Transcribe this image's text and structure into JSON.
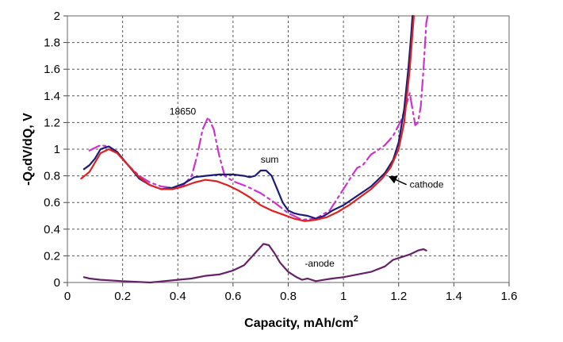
{
  "chart_data": {
    "type": "line",
    "title": "",
    "xlabel": "Capacity, mAh/cm",
    "xlabel_superscript": "2",
    "ylabel": "-Q₀dV/dQ, V",
    "xlim": [
      0,
      1.6
    ],
    "ylim": [
      0,
      2
    ],
    "x_ticks": [
      "0",
      "0.2",
      "0.4",
      "0.6",
      "0.8",
      "1",
      "1.2",
      "1.4",
      "1.6"
    ],
    "y_ticks": [
      "0",
      "0.2",
      "0.4",
      "0.6",
      "0.8",
      "1",
      "1.2",
      "1.4",
      "1.6",
      "1.8",
      "2"
    ],
    "grid": true,
    "series": [
      {
        "name": "18650",
        "color": "#cc33cc",
        "style": "dashdot",
        "points": [
          [
            0.08,
            0.99
          ],
          [
            0.1,
            1.01
          ],
          [
            0.12,
            1.03
          ],
          [
            0.15,
            1.02
          ],
          [
            0.18,
            0.98
          ],
          [
            0.22,
            0.88
          ],
          [
            0.26,
            0.8
          ],
          [
            0.3,
            0.75
          ],
          [
            0.34,
            0.72
          ],
          [
            0.38,
            0.71
          ],
          [
            0.42,
            0.73
          ],
          [
            0.45,
            0.8
          ],
          [
            0.47,
            0.95
          ],
          [
            0.49,
            1.15
          ],
          [
            0.51,
            1.24
          ],
          [
            0.53,
            1.15
          ],
          [
            0.55,
            0.95
          ],
          [
            0.57,
            0.8
          ],
          [
            0.6,
            0.76
          ],
          [
            0.65,
            0.72
          ],
          [
            0.7,
            0.67
          ],
          [
            0.75,
            0.6
          ],
          [
            0.8,
            0.52
          ],
          [
            0.85,
            0.47
          ],
          [
            0.9,
            0.48
          ],
          [
            0.95,
            0.54
          ],
          [
            1.0,
            0.7
          ],
          [
            1.03,
            0.8
          ],
          [
            1.05,
            0.86
          ],
          [
            1.07,
            0.88
          ],
          [
            1.1,
            0.96
          ],
          [
            1.13,
            1.0
          ],
          [
            1.15,
            1.03
          ],
          [
            1.18,
            1.1
          ],
          [
            1.21,
            1.22
          ],
          [
            1.23,
            1.35
          ],
          [
            1.24,
            1.42
          ],
          [
            1.25,
            1.3
          ],
          [
            1.26,
            1.18
          ],
          [
            1.27,
            1.2
          ],
          [
            1.28,
            1.32
          ],
          [
            1.29,
            1.6
          ],
          [
            1.3,
            1.95
          ],
          [
            1.305,
            2.0
          ]
        ]
      },
      {
        "name": "sum",
        "color": "#1c1c78",
        "style": "solid",
        "points": [
          [
            0.06,
            0.85
          ],
          [
            0.08,
            0.88
          ],
          [
            0.1,
            0.93
          ],
          [
            0.12,
            1.0
          ],
          [
            0.15,
            1.02
          ],
          [
            0.18,
            0.98
          ],
          [
            0.22,
            0.88
          ],
          [
            0.26,
            0.78
          ],
          [
            0.3,
            0.73
          ],
          [
            0.34,
            0.7
          ],
          [
            0.38,
            0.71
          ],
          [
            0.42,
            0.74
          ],
          [
            0.46,
            0.79
          ],
          [
            0.5,
            0.8
          ],
          [
            0.55,
            0.81
          ],
          [
            0.6,
            0.81
          ],
          [
            0.64,
            0.8
          ],
          [
            0.66,
            0.79
          ],
          [
            0.68,
            0.8
          ],
          [
            0.7,
            0.84
          ],
          [
            0.72,
            0.84
          ],
          [
            0.74,
            0.8
          ],
          [
            0.76,
            0.7
          ],
          [
            0.78,
            0.6
          ],
          [
            0.8,
            0.54
          ],
          [
            0.82,
            0.52
          ],
          [
            0.84,
            0.51
          ],
          [
            0.87,
            0.5
          ],
          [
            0.9,
            0.48
          ],
          [
            0.93,
            0.5
          ],
          [
            0.96,
            0.54
          ],
          [
            1.0,
            0.58
          ],
          [
            1.05,
            0.65
          ],
          [
            1.1,
            0.72
          ],
          [
            1.15,
            0.82
          ],
          [
            1.18,
            0.92
          ],
          [
            1.2,
            1.05
          ],
          [
            1.22,
            1.3
          ],
          [
            1.235,
            1.6
          ],
          [
            1.245,
            1.85
          ],
          [
            1.25,
            2.0
          ]
        ]
      },
      {
        "name": "cathode",
        "color": "#dd2222",
        "style": "solid",
        "points": [
          [
            0.05,
            0.78
          ],
          [
            0.08,
            0.83
          ],
          [
            0.1,
            0.9
          ],
          [
            0.12,
            0.97
          ],
          [
            0.15,
            1.0
          ],
          [
            0.18,
            0.97
          ],
          [
            0.22,
            0.88
          ],
          [
            0.26,
            0.79
          ],
          [
            0.3,
            0.73
          ],
          [
            0.34,
            0.7
          ],
          [
            0.38,
            0.7
          ],
          [
            0.42,
            0.72
          ],
          [
            0.46,
            0.75
          ],
          [
            0.5,
            0.77
          ],
          [
            0.54,
            0.76
          ],
          [
            0.58,
            0.73
          ],
          [
            0.62,
            0.69
          ],
          [
            0.66,
            0.64
          ],
          [
            0.7,
            0.58
          ],
          [
            0.74,
            0.54
          ],
          [
            0.78,
            0.51
          ],
          [
            0.82,
            0.48
          ],
          [
            0.86,
            0.46
          ],
          [
            0.9,
            0.47
          ],
          [
            0.94,
            0.49
          ],
          [
            0.98,
            0.53
          ],
          [
            1.02,
            0.58
          ],
          [
            1.06,
            0.64
          ],
          [
            1.1,
            0.7
          ],
          [
            1.14,
            0.78
          ],
          [
            1.17,
            0.86
          ],
          [
            1.2,
            1.0
          ],
          [
            1.22,
            1.2
          ],
          [
            1.24,
            1.6
          ],
          [
            1.255,
            2.0
          ]
        ]
      },
      {
        "name": "-anode",
        "color": "#662266",
        "style": "solid",
        "points": [
          [
            0.06,
            0.04
          ],
          [
            0.08,
            0.03
          ],
          [
            0.12,
            0.02
          ],
          [
            0.2,
            0.01
          ],
          [
            0.3,
            0.0
          ],
          [
            0.35,
            0.01
          ],
          [
            0.4,
            0.02
          ],
          [
            0.45,
            0.03
          ],
          [
            0.5,
            0.05
          ],
          [
            0.55,
            0.06
          ],
          [
            0.6,
            0.09
          ],
          [
            0.64,
            0.13
          ],
          [
            0.68,
            0.22
          ],
          [
            0.71,
            0.29
          ],
          [
            0.73,
            0.28
          ],
          [
            0.75,
            0.22
          ],
          [
            0.77,
            0.15
          ],
          [
            0.8,
            0.08
          ],
          [
            0.83,
            0.04
          ],
          [
            0.85,
            0.02
          ],
          [
            0.87,
            0.03
          ],
          [
            0.9,
            0.01
          ],
          [
            0.93,
            0.02
          ],
          [
            0.96,
            0.03
          ],
          [
            1.0,
            0.04
          ],
          [
            1.05,
            0.06
          ],
          [
            1.1,
            0.08
          ],
          [
            1.15,
            0.12
          ],
          [
            1.18,
            0.17
          ],
          [
            1.21,
            0.19
          ],
          [
            1.24,
            0.21
          ],
          [
            1.27,
            0.24
          ],
          [
            1.29,
            0.25
          ],
          [
            1.3,
            0.24
          ]
        ]
      }
    ],
    "annotations": [
      {
        "text": "18650",
        "x": 0.37,
        "y": 1.26
      },
      {
        "text": "sum",
        "x": 0.7,
        "y": 0.9
      },
      {
        "text": "cathode",
        "x": 1.24,
        "y": 0.71,
        "arrow_to": [
          1.16,
          0.8
        ]
      },
      {
        "text": "-anode",
        "x": 0.86,
        "y": 0.12
      }
    ]
  }
}
